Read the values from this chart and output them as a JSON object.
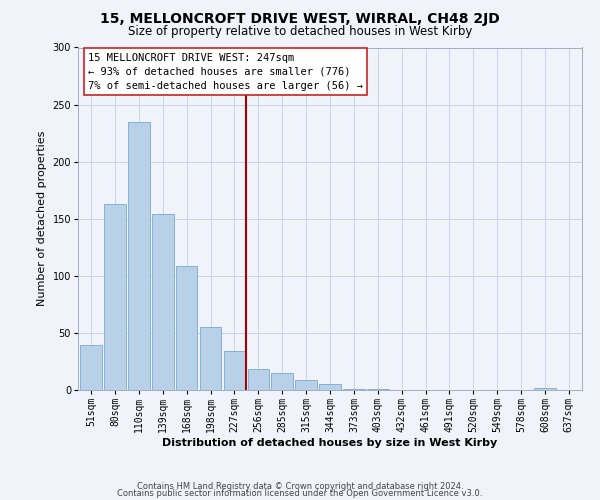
{
  "title": "15, MELLONCROFT DRIVE WEST, WIRRAL, CH48 2JD",
  "subtitle": "Size of property relative to detached houses in West Kirby",
  "xlabel": "Distribution of detached houses by size in West Kirby",
  "ylabel": "Number of detached properties",
  "bar_labels": [
    "51sqm",
    "80sqm",
    "110sqm",
    "139sqm",
    "168sqm",
    "198sqm",
    "227sqm",
    "256sqm",
    "285sqm",
    "315sqm",
    "344sqm",
    "373sqm",
    "403sqm",
    "432sqm",
    "461sqm",
    "491sqm",
    "520sqm",
    "549sqm",
    "578sqm",
    "608sqm",
    "637sqm"
  ],
  "bar_values": [
    39,
    163,
    235,
    154,
    109,
    55,
    34,
    18,
    15,
    9,
    5,
    1,
    1,
    0,
    0,
    0,
    0,
    0,
    0,
    2,
    0
  ],
  "bar_color": "#b8d0e8",
  "bar_edge_color": "#7aaad0",
  "vline_x_idx": 7,
  "vline_color": "#aa0000",
  "annotation_title": "15 MELLONCROFT DRIVE WEST: 247sqm",
  "annotation_line1": "← 93% of detached houses are smaller (776)",
  "annotation_line2": "7% of semi-detached houses are larger (56) →",
  "annotation_box_facecolor": "#ffffff",
  "annotation_box_edgecolor": "#cc2222",
  "ylim": [
    0,
    300
  ],
  "yticks": [
    0,
    50,
    100,
    150,
    200,
    250,
    300
  ],
  "footer1": "Contains HM Land Registry data © Crown copyright and database right 2024.",
  "footer2": "Contains public sector information licensed under the Open Government Licence v3.0.",
  "bg_color": "#f0f4fa",
  "grid_color": "#c8d4e8",
  "title_fontsize": 10,
  "subtitle_fontsize": 8.5,
  "xlabel_fontsize": 8,
  "ylabel_fontsize": 8,
  "tick_fontsize": 7,
  "annotation_fontsize": 7.5,
  "footer_fontsize": 6
}
